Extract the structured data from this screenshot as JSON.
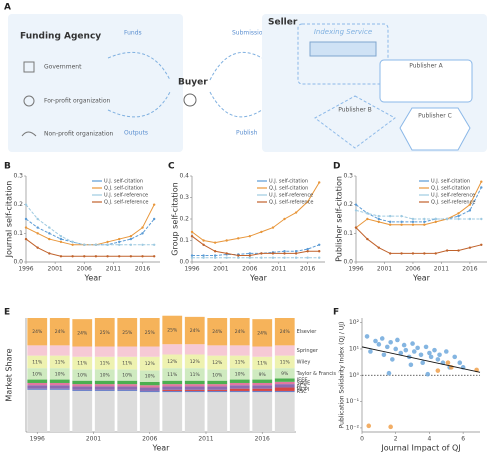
{
  "diagram": {
    "label": "A",
    "left": {
      "title": "Funding Agency",
      "items": [
        "Government",
        "For-profit organization",
        "Non-profit organization"
      ]
    },
    "middle": {
      "title": "Buyer",
      "flows": [
        "Funds",
        "Outputs",
        "Submission",
        "Publish"
      ]
    },
    "right": {
      "title": "Seller",
      "indexing": "Indexing Service",
      "publishers": [
        "Publisher A",
        "Publisher B",
        "Publisher C"
      ]
    }
  },
  "chart_data": [
    {
      "type": "line",
      "label": "B",
      "ylabel": "Journal self-citation",
      "xlabel": "Year",
      "x": [
        1996,
        1998,
        2000,
        2002,
        2004,
        2006,
        2008,
        2010,
        2012,
        2014,
        2016,
        2018
      ],
      "xlim": [
        1996,
        2019
      ],
      "xticks": [
        1996,
        2001,
        2006,
        2011,
        2016
      ],
      "ylim": [
        0,
        0.3
      ],
      "yticks": [
        {
          "value": 0,
          "label": "0.0"
        },
        {
          "value": 0.1,
          "label": "0.1"
        },
        {
          "value": 0.2,
          "label": "0.2"
        },
        {
          "value": 0.3,
          "label": "0.3"
        }
      ],
      "series": [
        {
          "name": "U.J. self-citation",
          "color": "#5b9bd5",
          "values": [
            0.15,
            0.12,
            0.1,
            0.08,
            0.07,
            0.06,
            0.06,
            0.06,
            0.07,
            0.08,
            0.1,
            0.15
          ]
        },
        {
          "name": "Q.J. self-citation",
          "color": "#e8963a",
          "values": [
            0.12,
            0.1,
            0.08,
            0.07,
            0.06,
            0.06,
            0.06,
            0.07,
            0.08,
            0.09,
            0.12,
            0.2
          ]
        },
        {
          "name": "U.J. self-reference",
          "color": "#9ecae1",
          "values": [
            0.2,
            0.15,
            0.12,
            0.09,
            0.07,
            0.06,
            0.06,
            0.06,
            0.06,
            0.06,
            0.06,
            0.06
          ]
        },
        {
          "name": "Q.J. self-reference",
          "color": "#c0622b",
          "values": [
            0.08,
            0.05,
            0.03,
            0.02,
            0.02,
            0.02,
            0.02,
            0.02,
            0.02,
            0.02,
            0.02,
            0.02
          ]
        }
      ]
    },
    {
      "type": "line",
      "label": "C",
      "ylabel": "Group self-citation",
      "xlabel": "Year",
      "x": [
        1996,
        1998,
        2000,
        2002,
        2004,
        2006,
        2008,
        2010,
        2012,
        2014,
        2016,
        2018
      ],
      "xlim": [
        1996,
        2019
      ],
      "xticks": [
        1996,
        2001,
        2006,
        2011,
        2016
      ],
      "ylim": [
        0,
        0.4
      ],
      "yticks": [
        {
          "value": 0,
          "label": "0.0"
        },
        {
          "value": 0.1,
          "label": "0.1"
        },
        {
          "value": 0.2,
          "label": "0.2"
        },
        {
          "value": 0.3,
          "label": "0.3"
        },
        {
          "value": 0.4,
          "label": "0.4"
        }
      ],
      "series": [
        {
          "name": "U.J. self-citation",
          "color": "#5b9bd5",
          "values": [
            0.03,
            0.03,
            0.03,
            0.035,
            0.035,
            0.04,
            0.04,
            0.045,
            0.05,
            0.05,
            0.06,
            0.08
          ]
        },
        {
          "name": "Q.J. self-citation",
          "color": "#e8963a",
          "values": [
            0.14,
            0.1,
            0.09,
            0.1,
            0.11,
            0.12,
            0.14,
            0.16,
            0.2,
            0.23,
            0.28,
            0.37
          ]
        },
        {
          "name": "U.J. self-reference",
          "color": "#9ecae1",
          "values": [
            0.02,
            0.02,
            0.02,
            0.02,
            0.02,
            0.02,
            0.02,
            0.02,
            0.02,
            0.02,
            0.02,
            0.02
          ]
        },
        {
          "name": "Q.J. self-reference",
          "color": "#c0622b",
          "values": [
            0.12,
            0.08,
            0.05,
            0.04,
            0.03,
            0.03,
            0.04,
            0.04,
            0.04,
            0.04,
            0.05,
            0.05
          ]
        }
      ]
    },
    {
      "type": "line",
      "label": "D",
      "ylabel": "Publisher self-citation",
      "xlabel": "Year",
      "x": [
        1996,
        1998,
        2000,
        2002,
        2004,
        2006,
        2008,
        2010,
        2012,
        2014,
        2016,
        2018
      ],
      "xlim": [
        1996,
        2019
      ],
      "xticks": [
        1996,
        2001,
        2006,
        2011,
        2016
      ],
      "ylim": [
        0,
        0.3
      ],
      "yticks": [
        {
          "value": 0,
          "label": "0.0"
        },
        {
          "value": 0.1,
          "label": "0.1"
        },
        {
          "value": 0.2,
          "label": "0.2"
        },
        {
          "value": 0.3,
          "label": "0.3"
        }
      ],
      "series": [
        {
          "name": "U.J. self-citation",
          "color": "#5b9bd5",
          "values": [
            0.2,
            0.17,
            0.15,
            0.14,
            0.14,
            0.14,
            0.14,
            0.15,
            0.15,
            0.16,
            0.18,
            0.26
          ]
        },
        {
          "name": "Q.J. self-citation",
          "color": "#e8963a",
          "values": [
            0.12,
            0.15,
            0.14,
            0.13,
            0.13,
            0.13,
            0.13,
            0.14,
            0.15,
            0.17,
            0.2,
            0.28
          ]
        },
        {
          "name": "U.J. self-reference",
          "color": "#9ecae1",
          "values": [
            0.18,
            0.17,
            0.16,
            0.16,
            0.16,
            0.15,
            0.15,
            0.15,
            0.15,
            0.15,
            0.15,
            0.15
          ]
        },
        {
          "name": "Q.J. self-reference",
          "color": "#c0622b",
          "values": [
            0.12,
            0.08,
            0.05,
            0.03,
            0.03,
            0.03,
            0.03,
            0.03,
            0.04,
            0.04,
            0.05,
            0.06
          ]
        }
      ]
    },
    {
      "type": "bar",
      "stacked": true,
      "label": "E",
      "ylabel": "Market Share",
      "xlabel": "Year",
      "x": [
        1996,
        1998,
        2000,
        2002,
        2004,
        2006,
        2008,
        2010,
        2012,
        2014,
        2016,
        2018
      ],
      "xlim": [
        1995,
        2019
      ],
      "xticks": [
        1996,
        2001,
        2006,
        2011,
        2016
      ],
      "ylim": [
        0,
        100
      ],
      "series": [
        {
          "color": "#dcdcdc",
          "values": [
            37,
            37,
            36,
            36,
            36,
            35,
            35,
            35,
            35,
            35,
            35,
            35
          ]
        },
        {
          "name": "RSC",
          "color": "#6a7fc8",
          "values": [
            1,
            1,
            1,
            1,
            1,
            1,
            1,
            1,
            1,
            1,
            1,
            1
          ]
        },
        {
          "name": "MDPI",
          "color": "#d64545",
          "values": [
            0,
            0,
            0,
            0,
            0,
            0,
            1,
            1,
            1,
            2,
            2,
            3
          ]
        },
        {
          "name": "ACS",
          "color": "#8c6bb1",
          "values": [
            3,
            3,
            3,
            3,
            3,
            3,
            3,
            3,
            3,
            3,
            3,
            3
          ]
        },
        {
          "name": "SAGE",
          "color": "#e377a0",
          "values": [
            2,
            2,
            2,
            2,
            2,
            2,
            2,
            2,
            2,
            2,
            2,
            2
          ]
        },
        {
          "name": "IEEE",
          "color": "#4caf50",
          "values": [
            3,
            3,
            3,
            3,
            3,
            3,
            3,
            3,
            3,
            3,
            3,
            3
          ]
        },
        {
          "name": "Taylor & Francis",
          "color": "#cfeac0",
          "values": [
            10,
            10,
            10,
            10,
            10,
            10,
            11,
            11,
            10,
            10,
            9,
            9
          ],
          "value_labels": [
            "10%",
            "10%",
            "10%",
            "10%",
            "10%",
            "10%",
            "11%",
            "11%",
            "10%",
            "10%",
            "9%",
            "9%"
          ]
        },
        {
          "name": "Wiley",
          "color": "#eef2b0",
          "values": [
            11,
            11,
            11,
            11,
            11,
            12,
            12,
            12,
            12,
            11,
            11,
            11
          ],
          "value_labels": [
            "11%",
            "11%",
            "11%",
            "11%",
            "11%",
            "12%",
            "12%",
            "12%",
            "12%",
            "11%",
            "11%",
            "11%"
          ]
        },
        {
          "name": "Springer",
          "color": "#f6c9d5",
          "values": [
            9,
            9,
            9,
            9,
            9,
            9,
            9,
            9,
            9,
            9,
            9,
            9
          ]
        },
        {
          "name": "Elsevier",
          "color": "#f6b35a",
          "values": [
            24,
            24,
            24,
            25,
            25,
            25,
            25,
            24,
            24,
            24,
            24,
            24
          ],
          "value_labels": [
            "24%",
            "24%",
            "24%",
            "25%",
            "25%",
            "25%",
            "25%",
            "24%",
            "24%",
            "24%",
            "24%",
            "24%"
          ]
        }
      ]
    },
    {
      "type": "scatter",
      "label": "F",
      "ylabel": "Publication Solidarity Index (QJ / UJ)",
      "xlabel": "Journal Impact of QJ",
      "xlim": [
        0,
        7
      ],
      "xticks": [
        0,
        2,
        4,
        6
      ],
      "yscale": "log",
      "ylim": [
        0.007,
        150
      ],
      "yticks": [
        {
          "value": 0.01,
          "label": "10⁻²"
        },
        {
          "value": 0.1,
          "label": "10⁻¹"
        },
        {
          "value": 1,
          "label": "10⁰"
        },
        {
          "value": 10,
          "label": "10¹"
        },
        {
          "value": 100,
          "label": "10²"
        }
      ],
      "series": [
        {
          "color": "#6fa8dc",
          "x": [
            0.3,
            0.5,
            0.8,
            1.0,
            1.2,
            1.3,
            1.5,
            1.7,
            1.8,
            2.0,
            2.1,
            2.3,
            2.5,
            2.6,
            2.8,
            3.0,
            3.1,
            3.3,
            3.5,
            3.6,
            3.8,
            4.0,
            4.1,
            4.3,
            4.5,
            4.6,
            4.8,
            5.0,
            5.2,
            5.5,
            5.8,
            6.0,
            3.9,
            2.9,
            1.6
          ],
          "values": [
            30,
            8,
            20,
            15,
            25,
            6,
            12,
            18,
            4,
            10,
            22,
            7,
            14,
            9,
            5,
            16,
            8,
            11,
            6,
            3,
            12,
            7,
            5,
            9,
            4,
            6,
            3,
            8,
            2,
            5,
            3,
            2,
            1.1,
            2.5,
            1.2
          ]
        },
        {
          "color": "#f0a04b",
          "x": [
            0.4,
            1.7,
            4.5,
            5.1,
            6.8,
            5.3
          ],
          "values": [
            0.012,
            0.011,
            1.5,
            3,
            1.6,
            2
          ]
        }
      ],
      "trend": {
        "x": [
          0,
          7
        ],
        "values": [
          12,
          1.3
        ]
      },
      "hline": 1
    }
  ]
}
